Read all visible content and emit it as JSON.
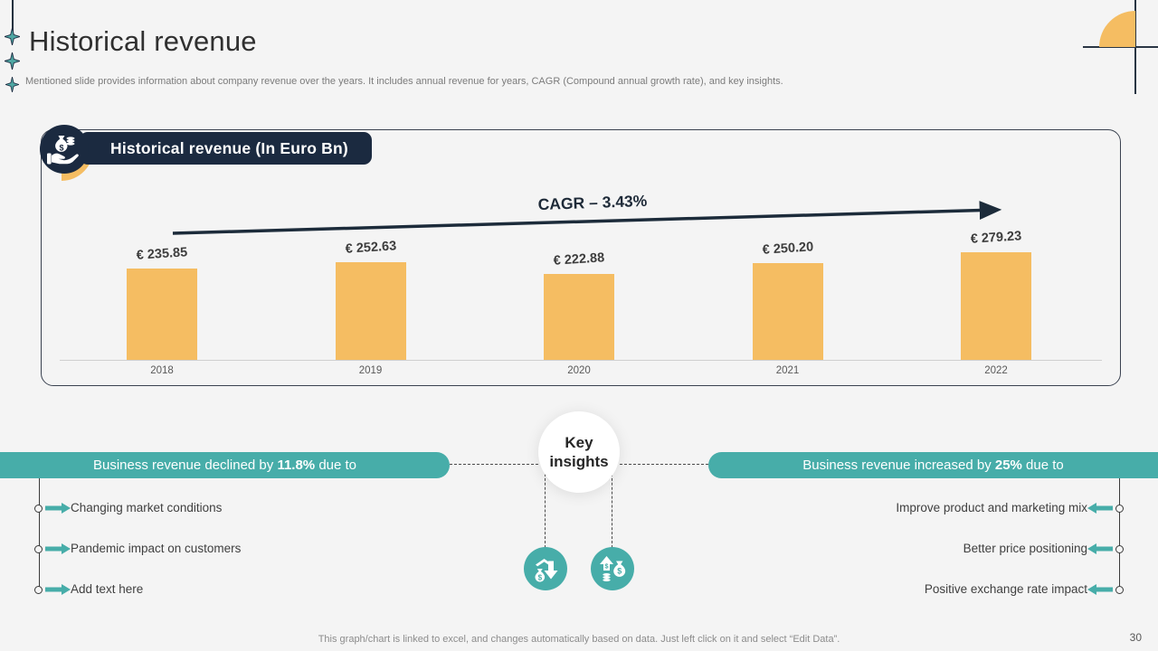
{
  "page": {
    "title": "Historical revenue",
    "subtitle": "Mentioned slide provides information about company revenue over the years. It includes annual revenue for years, CAGR (Compound annual growth rate), and key insights.",
    "footer": "This graph/chart is linked to excel, and changes automatically based on data. Just left click on it and select “Edit Data”.",
    "page_number": "30"
  },
  "chart_panel": {
    "header": "Historical revenue (In Euro Bn)",
    "header_icon": "hand-holding-money-icon"
  },
  "chart_data": {
    "type": "bar",
    "title": "Historical revenue (In Euro Bn)",
    "categories": [
      "2018",
      "2019",
      "2020",
      "2021",
      "2022"
    ],
    "values": [
      235.85,
      252.63,
      222.88,
      250.2,
      279.23
    ],
    "value_labels": [
      "€ 235.85",
      "€ 252.63",
      "€ 222.88",
      "€ 250.20",
      "€ 279.23"
    ],
    "annotation": "CAGR – 3.43%",
    "unit": "Euro Bn",
    "ylim": [
      0,
      300
    ],
    "grid": false,
    "legend": "none",
    "bar_color": "#F5BD62"
  },
  "insights": {
    "hub_label": "Key insights",
    "left_banner": {
      "pre": "Business revenue declined by ",
      "bold": "11.8%",
      "post": " due to"
    },
    "right_banner": {
      "pre": "Business revenue increased by ",
      "bold": "25%",
      "post": " due to"
    },
    "left_items": [
      "Changing market conditions",
      "Pandemic impact on customers",
      "Add text here"
    ],
    "right_items": [
      "Improve product and marketing mix",
      "Better price positioning",
      "Positive exchange rate impact"
    ],
    "icon_left": "money-bag-decrease-icon",
    "icon_right": "money-bag-increase-icon"
  },
  "colors": {
    "teal": "#47ADA9",
    "navy": "#1B2A40",
    "orange": "#F5BD62",
    "background": "#F4F4F4"
  }
}
